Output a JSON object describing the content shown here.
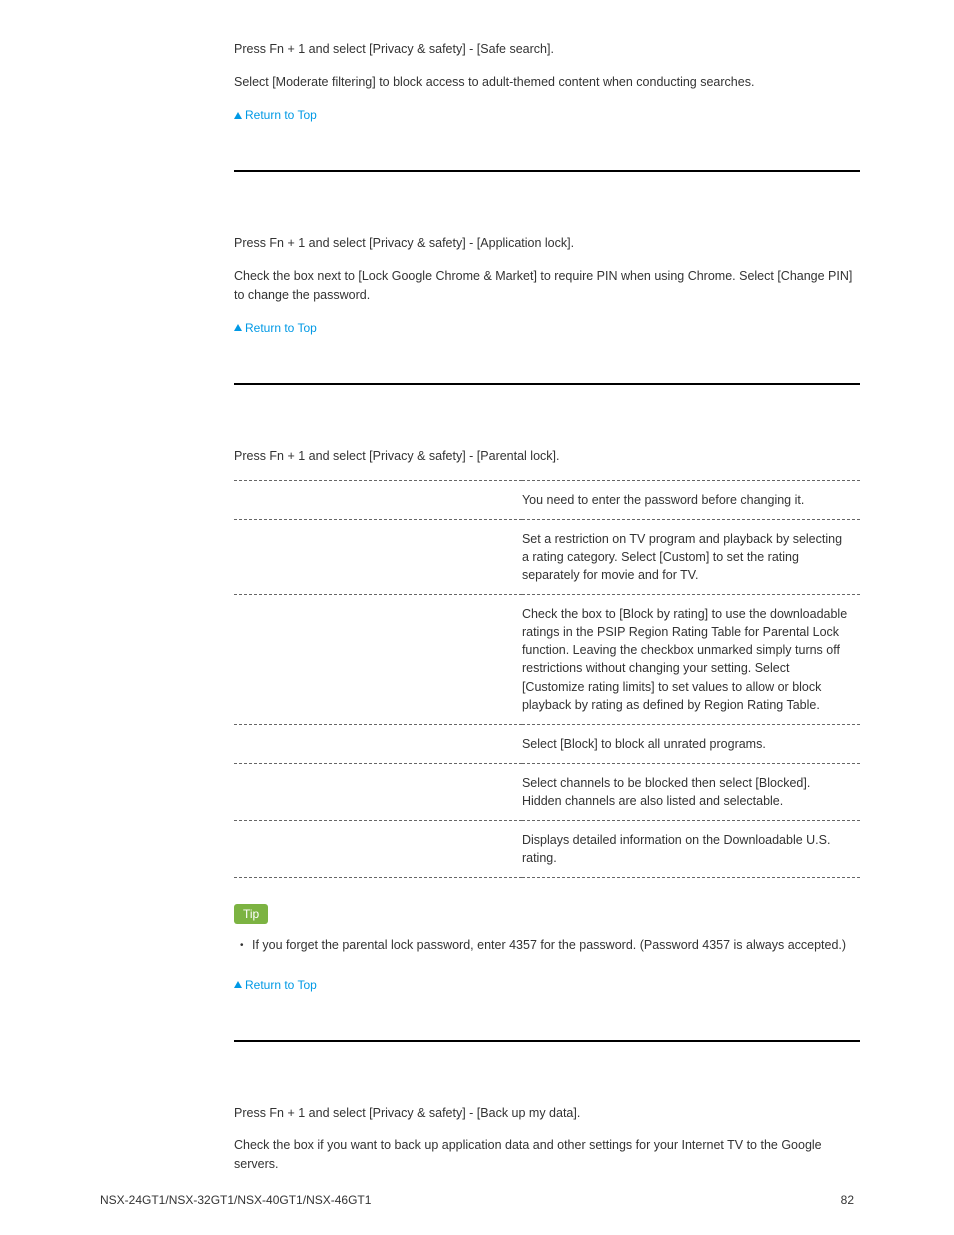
{
  "colors": {
    "text": "#333333",
    "link": "#0099e5",
    "badge_bg": "#7cb342",
    "badge_text": "#ffffff",
    "divider": "#000000",
    "table_border": "#666666",
    "background": "#ffffff"
  },
  "sections": {
    "safe_search": {
      "line1": "Press Fn + 1 and select [Privacy & safety] - [Safe search].",
      "line2": "Select [Moderate filtering] to block access to adult-themed content when conducting searches."
    },
    "app_lock": {
      "line1": "Press Fn + 1 and select [Privacy & safety] - [Application lock].",
      "line2": "Check the box next to [Lock Google Chrome & Market] to require PIN when using Chrome. Select [Change PIN] to change the password."
    },
    "parental_lock": {
      "line1": "Press Fn + 1 and select [Privacy & safety] - [Parental lock].",
      "rows": [
        {
          "left": "",
          "right": "You need to enter the password before changing it."
        },
        {
          "left": "",
          "right": "Set a restriction on TV program and playback by selecting a rating category. Select [Custom] to set the rating separately for movie and for TV."
        },
        {
          "left": "",
          "right": "Check the box to [Block by rating] to use the downloadable ratings in the PSIP Region Rating Table for Parental Lock function. Leaving the checkbox unmarked simply turns off restrictions without changing your setting. Select [Customize rating limits] to set values to allow or block playback by rating as defined by Region Rating Table."
        },
        {
          "left": "",
          "right": "Select [Block] to block all unrated programs."
        },
        {
          "left": "",
          "right": "Select channels to be blocked then select [Blocked]. Hidden channels are also listed and selectable."
        },
        {
          "left": "",
          "right": "Displays detailed information on the Downloadable U.S. rating."
        }
      ],
      "tip_label": "Tip",
      "tip_text": "If you forget the parental lock password, enter 4357 for the password. (Password 4357 is always accepted.)"
    },
    "backup": {
      "line1": "Press Fn + 1 and select [Privacy & safety] - [Back up my data].",
      "line2": "Check the box if you want to back up application data and other settings for your Internet TV to the Google servers."
    }
  },
  "return_label": "Return to Top",
  "footer": {
    "models": "NSX-24GT1/NSX-32GT1/NSX-40GT1/NSX-46GT1",
    "page": "82"
  }
}
